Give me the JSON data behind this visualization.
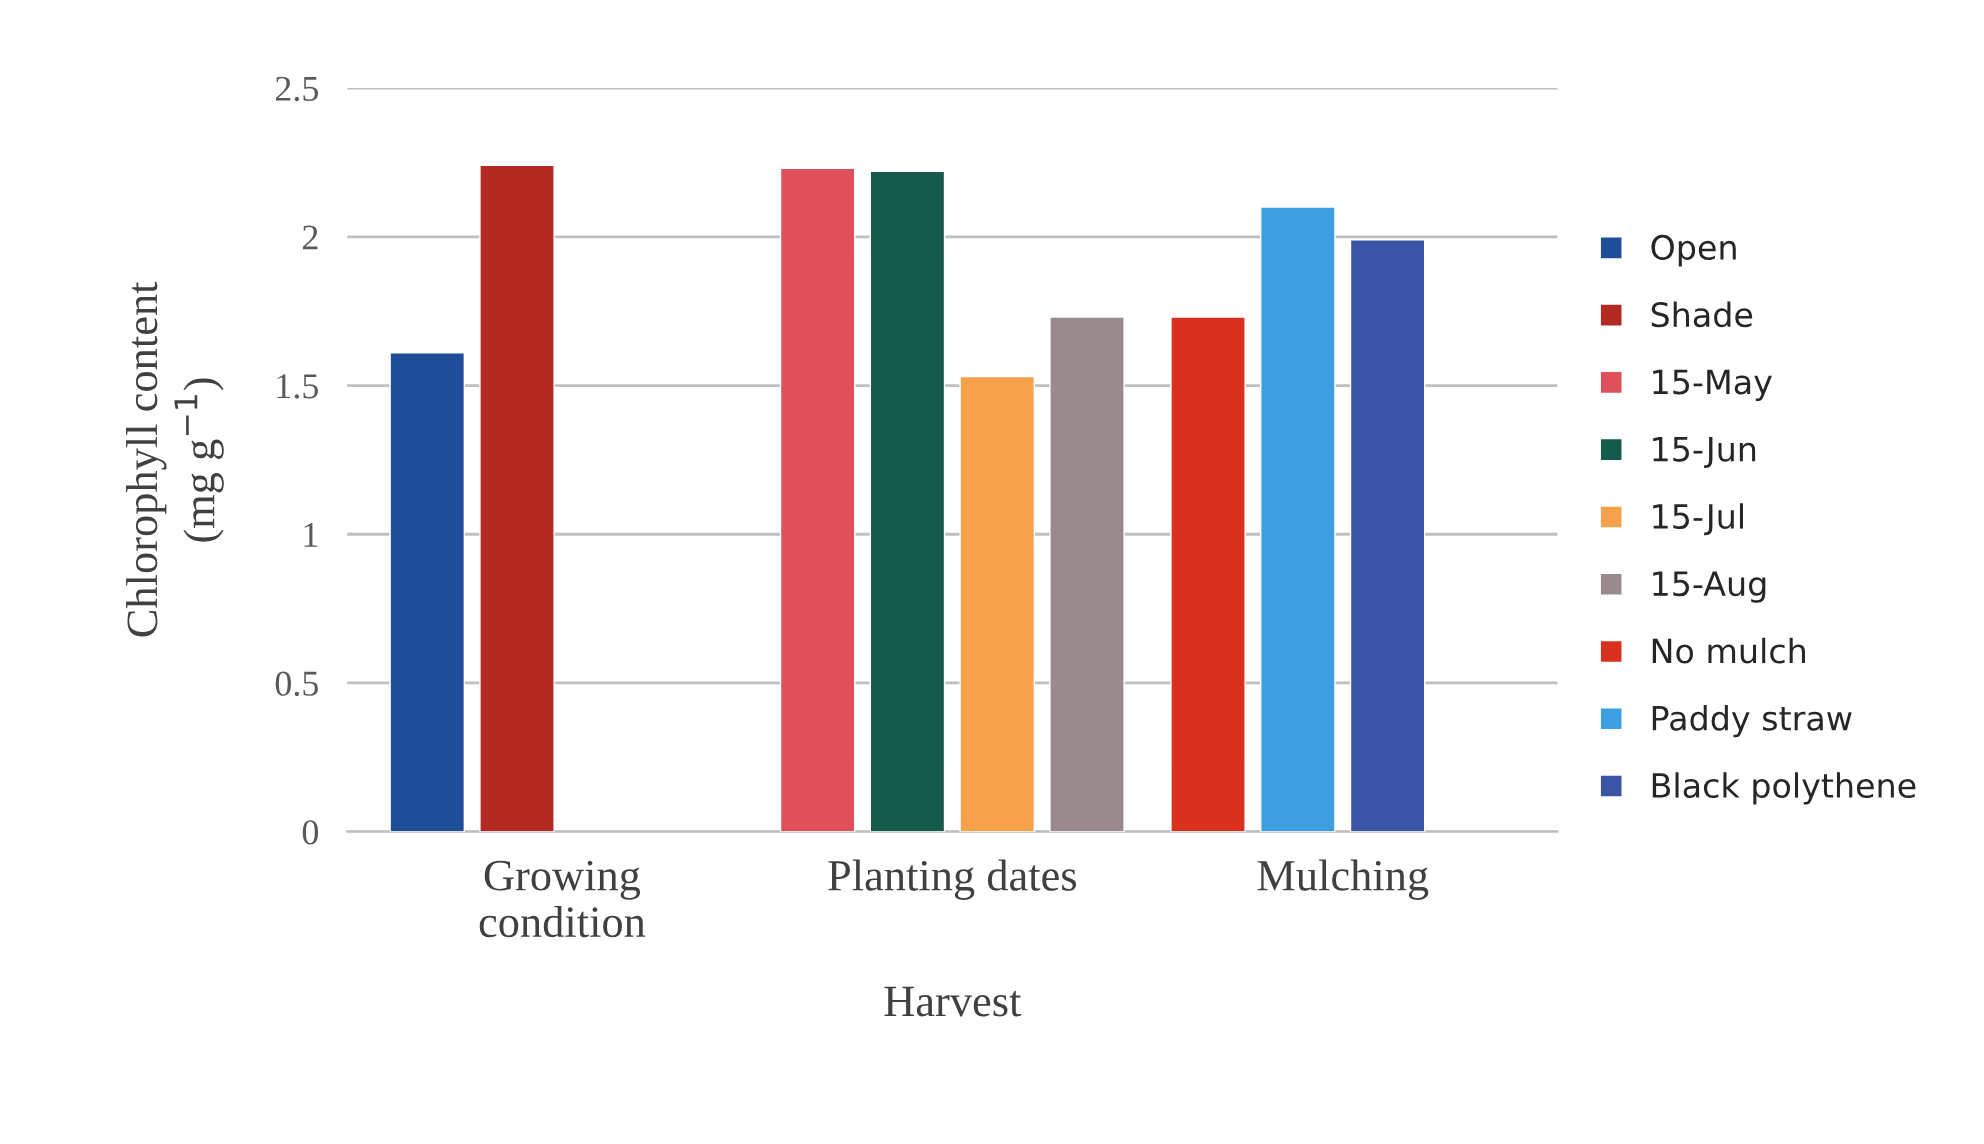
{
  "chart_data": {
    "type": "bar",
    "xlabel": "Harvest",
    "ylabel": "Chlorophyll content\n(mg g$^{−1}$)",
    "categories": [
      "Growing\ncondition",
      "Planting dates",
      "Mulching"
    ],
    "series": [
      {
        "name": "Open",
        "color": "#1f4e99",
        "values": [
          1.61,
          null,
          null
        ]
      },
      {
        "name": "Shade",
        "color": "#b22a22",
        "values": [
          2.24,
          null,
          null
        ]
      },
      {
        "name": "15-May",
        "color": "#e0505a",
        "values": [
          null,
          2.23,
          null
        ]
      },
      {
        "name": "15-Jun",
        "color": "#165a4a",
        "values": [
          null,
          2.22,
          null
        ]
      },
      {
        "name": "15-Jul",
        "color": "#f5a04a",
        "values": [
          null,
          1.53,
          null
        ]
      },
      {
        "name": "15-Aug",
        "color": "#9a8a8e",
        "values": [
          null,
          1.73,
          null
        ]
      },
      {
        "name": "No mulch",
        "color": "#d8321e",
        "values": [
          null,
          null,
          1.73
        ]
      },
      {
        "name": "Paddy straw",
        "color": "#3d9ee0",
        "values": [
          null,
          null,
          2.1
        ]
      },
      {
        "name": "Black polythene",
        "color": "#3a55a5",
        "values": [
          null,
          null,
          1.99
        ]
      }
    ],
    "ylim": [
      0,
      2.5
    ],
    "yticks": [
      0,
      0.5,
      1,
      1.5,
      2,
      2.5
    ],
    "grid": "y",
    "legend": "right"
  }
}
